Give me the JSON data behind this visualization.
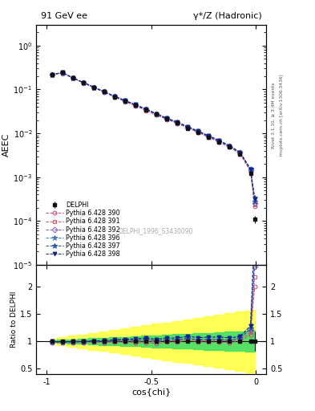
{
  "title_left": "91 GeV ee",
  "title_right": "γ*/Z (Hadronic)",
  "ylabel_main": "AEEC",
  "ylabel_ratio": "Ratio to DELPHI",
  "xlabel": "cos{chi}",
  "right_label": "Rivet 3.1.10, ≥ 3.4M events",
  "right_label2": "mcplots.cern.ch [arXiv:1306.3436]",
  "watermark": "DELPHI_1996_S3430090",
  "xlim": [
    -1.05,
    0.05
  ],
  "ylim_main_lo": 1e-05,
  "ylim_main_hi": 3.0,
  "ylim_ratio_lo": 0.4,
  "ylim_ratio_hi": 2.4,
  "cos_chi": [
    -0.975,
    -0.925,
    -0.875,
    -0.825,
    -0.775,
    -0.725,
    -0.675,
    -0.625,
    -0.575,
    -0.525,
    -0.475,
    -0.425,
    -0.375,
    -0.325,
    -0.275,
    -0.225,
    -0.175,
    -0.125,
    -0.075,
    -0.025,
    -0.005
  ],
  "delphi_y": [
    0.22,
    0.245,
    0.185,
    0.145,
    0.112,
    0.088,
    0.068,
    0.054,
    0.043,
    0.034,
    0.027,
    0.021,
    0.017,
    0.013,
    0.0105,
    0.0082,
    0.0064,
    0.0049,
    0.0034,
    0.0012,
    0.00011
  ],
  "delphi_yerr_lo": [
    0.006,
    0.006,
    0.005,
    0.004,
    0.003,
    0.002,
    0.0018,
    0.0014,
    0.0011,
    0.0009,
    0.0007,
    0.0006,
    0.0005,
    0.0004,
    0.0003,
    0.00025,
    0.0002,
    0.00015,
    0.0001,
    5e-05,
    2e-05
  ],
  "delphi_yerr_hi": [
    0.006,
    0.006,
    0.005,
    0.004,
    0.003,
    0.002,
    0.0018,
    0.0014,
    0.0011,
    0.0009,
    0.0007,
    0.0006,
    0.0005,
    0.0004,
    0.0003,
    0.00025,
    0.0002,
    0.00015,
    0.0001,
    5e-05,
    2e-05
  ],
  "pythia_390_y": [
    0.215,
    0.238,
    0.181,
    0.142,
    0.11,
    0.086,
    0.067,
    0.053,
    0.042,
    0.033,
    0.026,
    0.0207,
    0.0168,
    0.0132,
    0.0104,
    0.0081,
    0.0063,
    0.0048,
    0.0034,
    0.00135,
    0.00022
  ],
  "pythia_391_y": [
    0.217,
    0.24,
    0.182,
    0.143,
    0.111,
    0.087,
    0.068,
    0.054,
    0.043,
    0.034,
    0.0268,
    0.0212,
    0.0172,
    0.0135,
    0.0106,
    0.0083,
    0.0065,
    0.0049,
    0.0035,
    0.0014,
    0.00024
  ],
  "pythia_392_y": [
    0.218,
    0.241,
    0.183,
    0.144,
    0.112,
    0.088,
    0.069,
    0.055,
    0.044,
    0.035,
    0.0272,
    0.0215,
    0.0175,
    0.0137,
    0.0108,
    0.0085,
    0.0066,
    0.005,
    0.0036,
    0.00145,
    0.00026
  ],
  "pythia_396_y": [
    0.219,
    0.242,
    0.184,
    0.145,
    0.113,
    0.089,
    0.07,
    0.056,
    0.045,
    0.036,
    0.028,
    0.0222,
    0.018,
    0.0142,
    0.0112,
    0.0088,
    0.0069,
    0.0052,
    0.0037,
    0.00155,
    0.00035
  ],
  "pythia_397_y": [
    0.218,
    0.241,
    0.183,
    0.144,
    0.112,
    0.088,
    0.069,
    0.055,
    0.044,
    0.035,
    0.0272,
    0.0215,
    0.0175,
    0.0137,
    0.0108,
    0.0085,
    0.0066,
    0.005,
    0.0036,
    0.00148,
    0.00028
  ],
  "pythia_398_y": [
    0.219,
    0.242,
    0.184,
    0.145,
    0.113,
    0.089,
    0.07,
    0.056,
    0.045,
    0.036,
    0.028,
    0.0222,
    0.018,
    0.0142,
    0.0112,
    0.0088,
    0.0069,
    0.0052,
    0.0037,
    0.00153,
    0.00032
  ],
  "colors": {
    "390": "#cc4477",
    "391": "#cc5566",
    "392": "#8855bb",
    "396": "#4477bb",
    "397": "#2255aa",
    "398": "#112288"
  },
  "markers": {
    "390": "o",
    "391": "s",
    "392": "D",
    "396": "*",
    "397": "*",
    "398": "v"
  },
  "pythia_keys": [
    "390",
    "391",
    "392",
    "396",
    "397",
    "398"
  ],
  "pythia_labels": {
    "390": "Pythia 6.428 390",
    "391": "Pythia 6.428 391",
    "392": "Pythia 6.428 392",
    "396": "Pythia 6.428 396",
    "397": "Pythia 6.428 397",
    "398": "Pythia 6.428 398"
  }
}
